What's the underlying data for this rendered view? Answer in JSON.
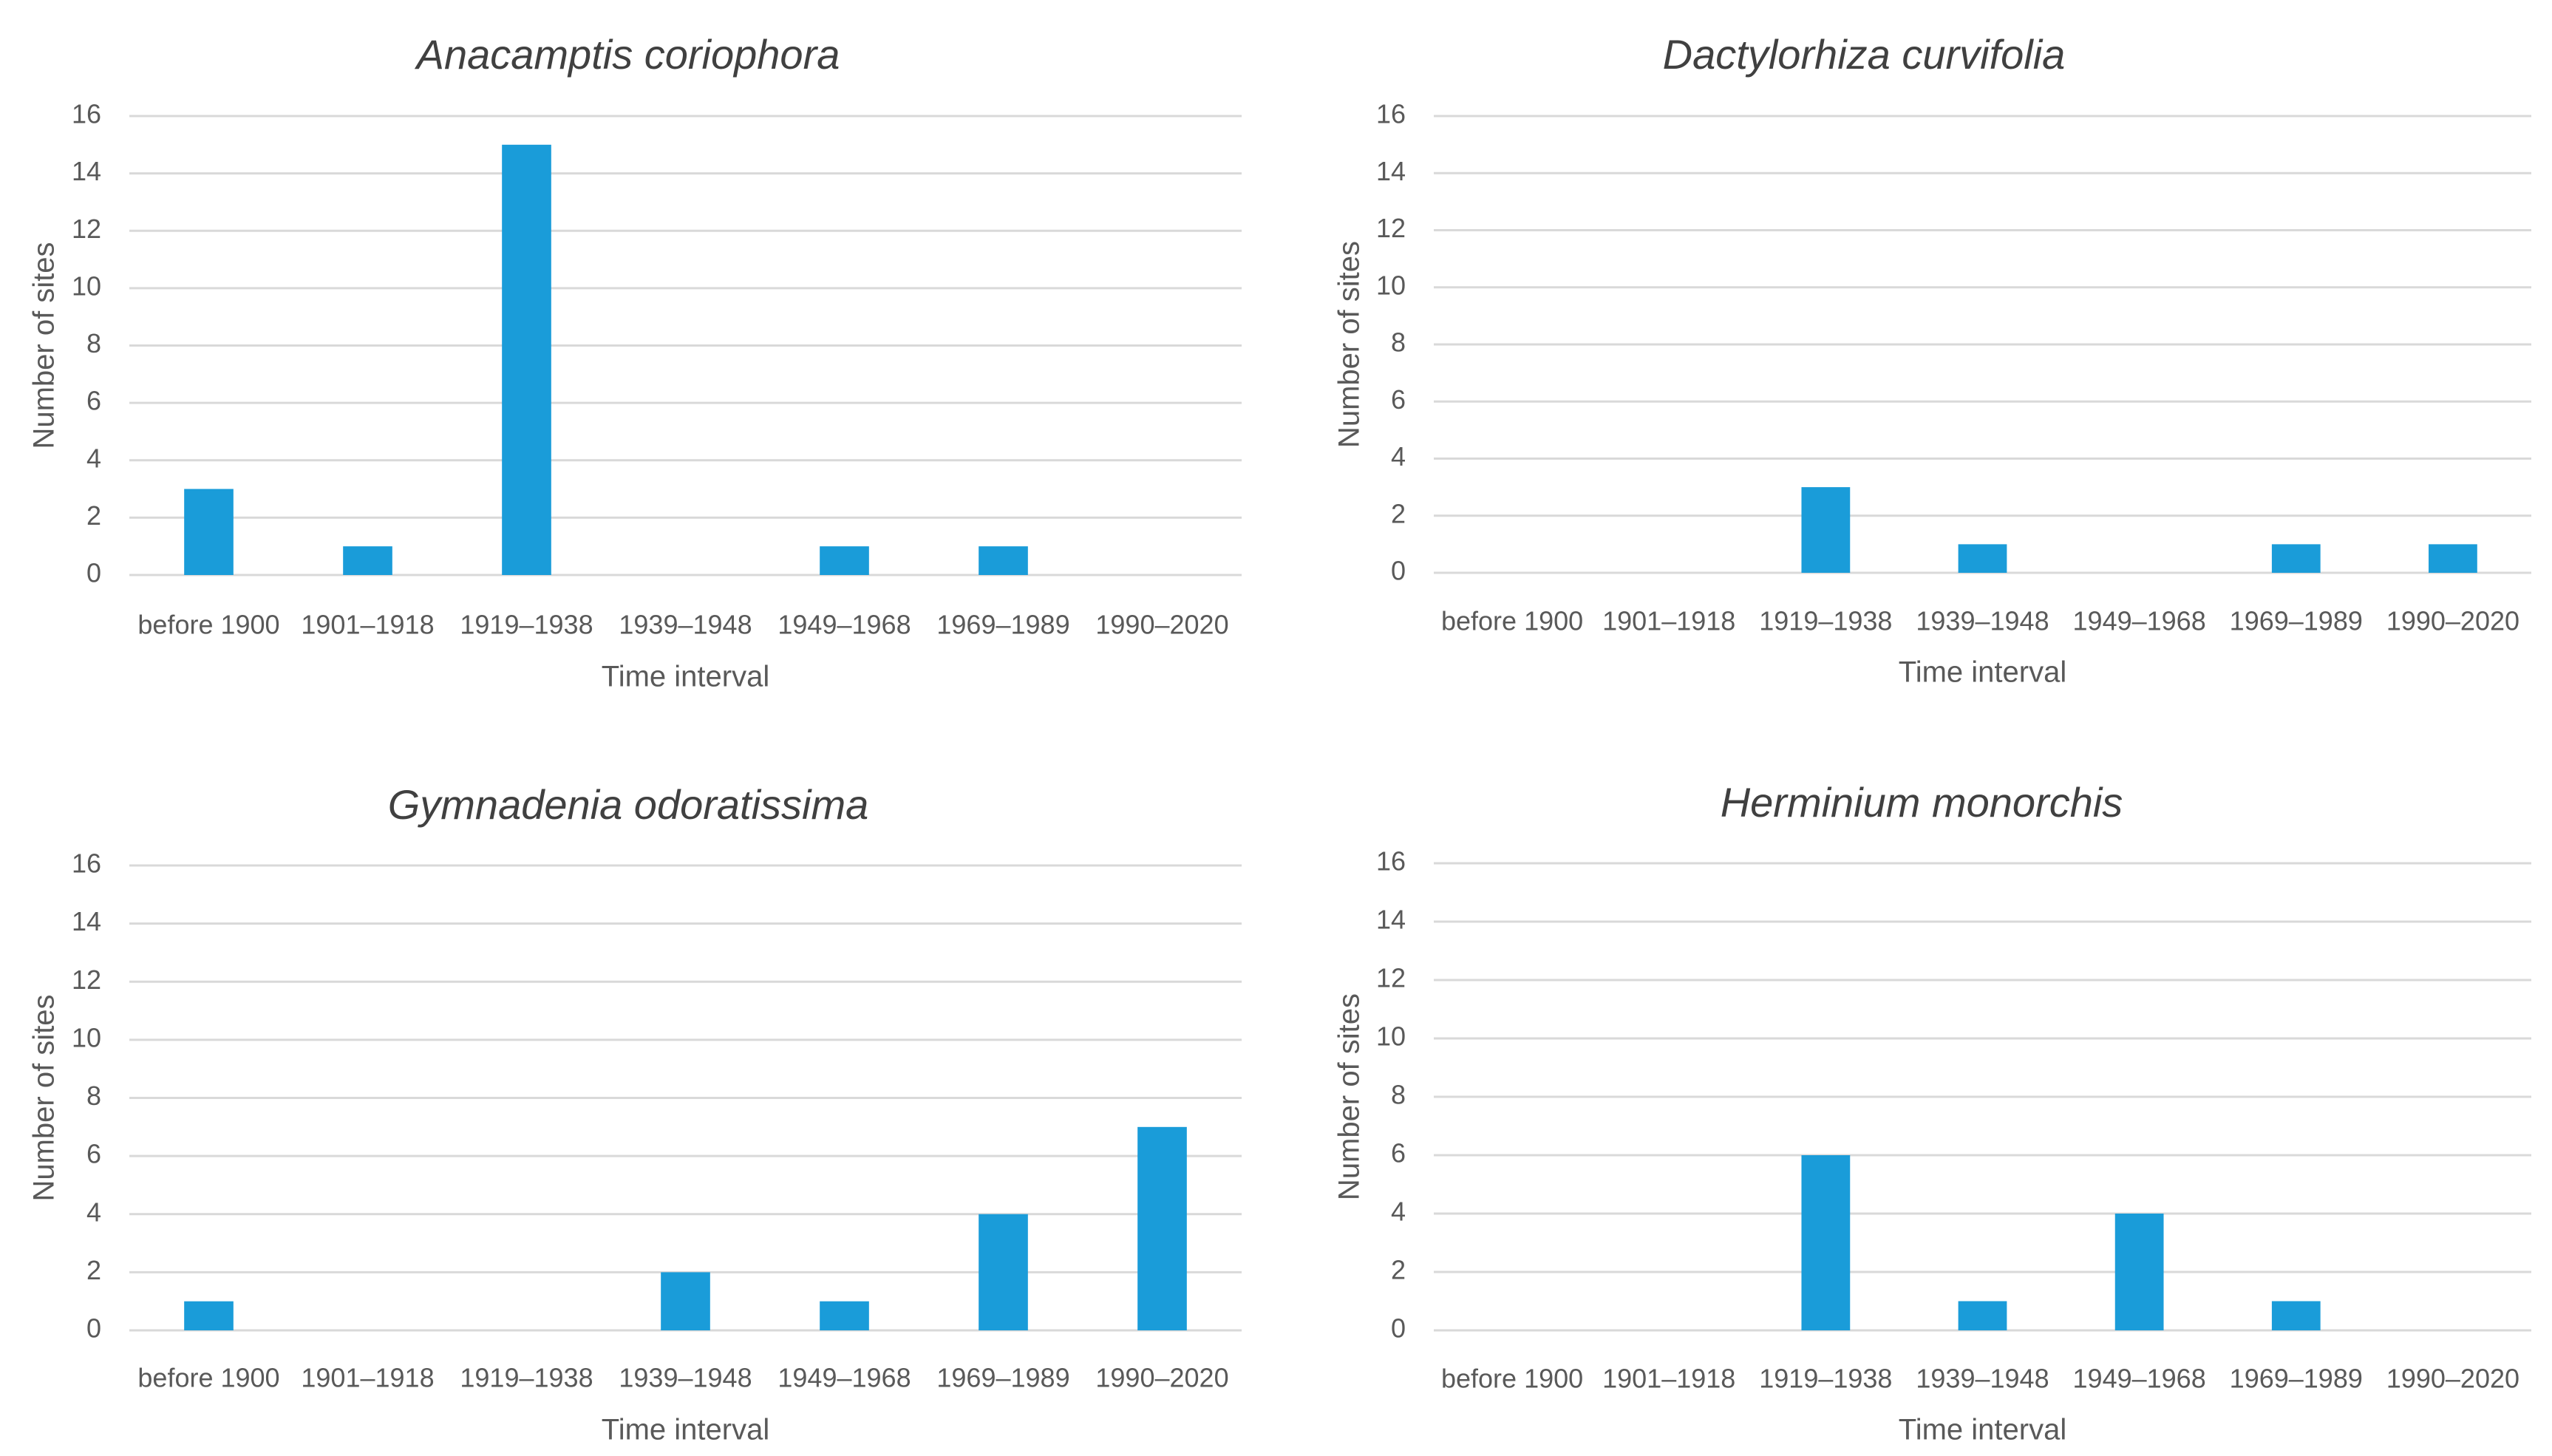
{
  "chart_data": [
    {
      "type": "bar",
      "title": "Anacamptis coriophora",
      "xlabel": "Time interval",
      "ylabel": "Number of sites",
      "categories": [
        "before 1900",
        "1901–1918",
        "1919–1938",
        "1939–1948",
        "1949–1968",
        "1969–1989",
        "1990–2020"
      ],
      "values": [
        3,
        1,
        15,
        0,
        1,
        1,
        0
      ],
      "ylim": [
        0,
        16
      ],
      "yticks": [
        "0",
        "2",
        "4",
        "6",
        "8",
        "10",
        "12",
        "14",
        "16"
      ],
      "grid": true,
      "bar_color": "#1a9cd9"
    },
    {
      "type": "bar",
      "title": "Dactylorhiza curvifolia",
      "xlabel": "Time interval",
      "ylabel": "Number of sites",
      "categories": [
        "before 1900",
        "1901–1918",
        "1919–1938",
        "1939–1948",
        "1949–1968",
        "1969–1989",
        "1990–2020"
      ],
      "values": [
        0,
        0,
        3,
        1,
        0,
        1,
        1
      ],
      "ylim": [
        0,
        16
      ],
      "yticks": [
        "0",
        "2",
        "4",
        "6",
        "8",
        "10",
        "12",
        "14",
        "16"
      ],
      "grid": true,
      "bar_color": "#1a9cd9"
    },
    {
      "type": "bar",
      "title": "Gymnadenia odoratissima",
      "xlabel": "Time interval",
      "ylabel": "Number of sites",
      "categories": [
        "before 1900",
        "1901–1918",
        "1919–1938",
        "1939–1948",
        "1949–1968",
        "1969–1989",
        "1990–2020"
      ],
      "values": [
        1,
        0,
        0,
        2,
        1,
        4,
        7
      ],
      "ylim": [
        0,
        16
      ],
      "yticks": [
        "0",
        "2",
        "4",
        "6",
        "8",
        "10",
        "12",
        "14",
        "16"
      ],
      "grid": true,
      "bar_color": "#1a9cd9"
    },
    {
      "type": "bar",
      "title": "Herminium monorchis",
      "xlabel": "Time interval",
      "ylabel": "Number of sites",
      "categories": [
        "before 1900",
        "1901–1918",
        "1919–1938",
        "1939–1948",
        "1949–1968",
        "1969–1989",
        "1990–2020"
      ],
      "values": [
        0,
        0,
        6,
        1,
        4,
        1,
        0
      ],
      "ylim": [
        0,
        16
      ],
      "yticks": [
        "0",
        "2",
        "4",
        "6",
        "8",
        "10",
        "12",
        "14",
        "16"
      ],
      "grid": true,
      "bar_color": "#1a9cd9"
    }
  ]
}
